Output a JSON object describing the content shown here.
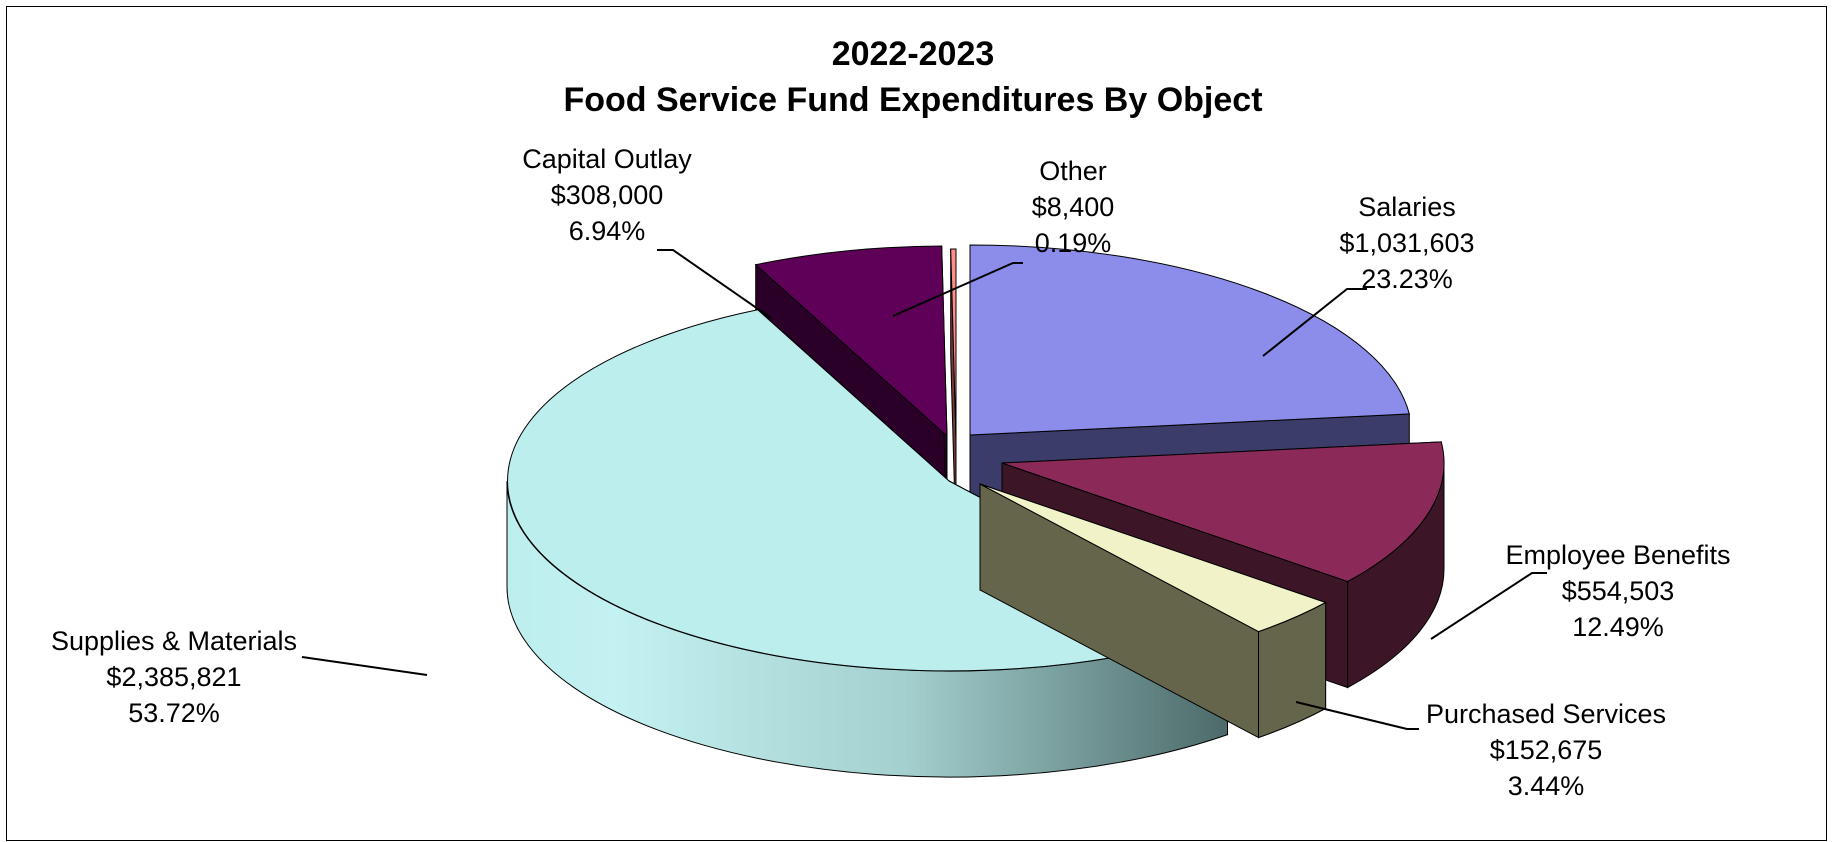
{
  "chart_data": {
    "type": "pie",
    "title": "2022-2023",
    "subtitle": "Food Service Fund Expenditures By Object",
    "slices": [
      {
        "name": "Salaries",
        "amount": "$1,031,603",
        "value": 1031603,
        "percent": "23.23%",
        "color": "#8c8ceb",
        "side": "#3c3c6a",
        "exploded": true
      },
      {
        "name": "Employee Benefits",
        "amount": "$554,503",
        "value": 554503,
        "percent": "12.49%",
        "color": "#8b2a58",
        "side": "#3c1527",
        "exploded": true
      },
      {
        "name": "Purchased Services",
        "amount": "$152,675",
        "value": 152675,
        "percent": "3.44%",
        "color": "#f2f2c8",
        "side": "#65654c",
        "exploded": true
      },
      {
        "name": "Supplies & Materials",
        "amount": "$2,385,821",
        "value": 2385821,
        "percent": "53.72%",
        "color": "#bdeeee",
        "side": "#8fb9b8",
        "exploded": false
      },
      {
        "name": "Capital Outlay",
        "amount": "$308,000",
        "value": 308000,
        "percent": "6.94%",
        "color": "#5e0058",
        "side": "#2a0028",
        "exploded": true
      },
      {
        "name": "Other",
        "amount": "$8,400",
        "value": 8400,
        "percent": "0.19%",
        "color": "#ff8c88",
        "side": "#7a3a38",
        "exploded": true
      }
    ],
    "legend": "none"
  }
}
